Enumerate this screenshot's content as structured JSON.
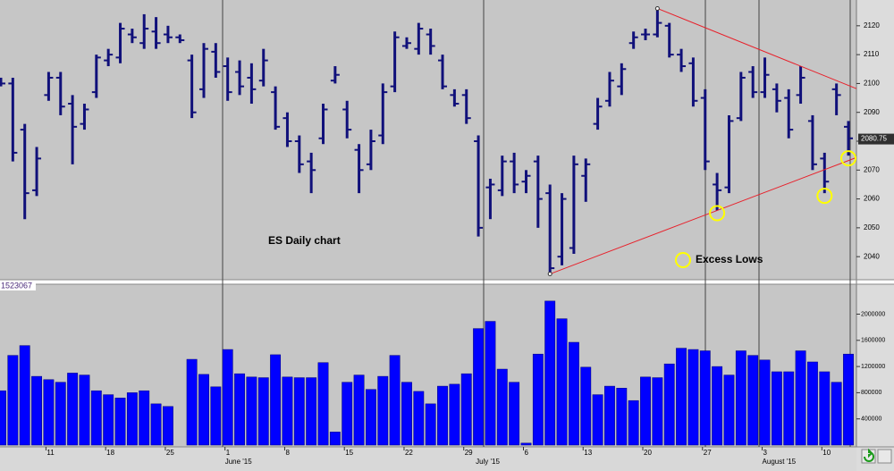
{
  "chart_data": [
    {
      "type": "ohlc",
      "title": "ES Daily chart",
      "annotation": "Excess Lows",
      "categories": [
        null,
        null,
        null,
        null,
        "11",
        null,
        null,
        null,
        null,
        "18",
        null,
        null,
        null,
        null,
        "25",
        null,
        null,
        null,
        null,
        "1",
        null,
        null,
        null,
        null,
        "8",
        null,
        null,
        null,
        null,
        "15",
        null,
        null,
        null,
        null,
        "22",
        null,
        null,
        null,
        null,
        "29",
        null,
        null,
        null,
        null,
        "6",
        null,
        null,
        null,
        null,
        "13",
        null,
        null,
        null,
        null,
        "20",
        null,
        null,
        null,
        null,
        "27",
        null,
        null,
        null,
        null,
        "3",
        null,
        null,
        null,
        null,
        "10",
        null,
        null
      ],
      "month_labels": [
        {
          "index": 19,
          "label": "June '15"
        },
        {
          "index": 40,
          "label": "July '15"
        },
        {
          "index": 64,
          "label": "August '15"
        }
      ],
      "open": [
        2101,
        2100,
        2084,
        2063,
        2096,
        2102,
        2093,
        2086,
        2097,
        2108,
        2109,
        2117,
        2114,
        2118,
        2117,
        2116,
        2108,
        2098,
        2111,
        2106,
        2104,
        2102,
        2101,
        2097,
        2088,
        2080,
        2073,
        2081,
        2101,
        2091,
        2077,
        2072,
        2082,
        2099,
        2113,
        2112,
        2117,
        2108,
        2096,
        2096,
        2080,
        2064,
        2063,
        2073,
        2066,
        2073,
        2062,
        2040,
        2043,
        2068,
        2086,
        2094,
        2099,
        2114,
        2117,
        2117,
        2120,
        2110,
        2107,
        2095,
        2065,
        2064,
        2088,
        2104,
        2097,
        2098,
        2095,
        2096,
        2087,
        2074,
        2098,
        2085
      ],
      "high": [
        2102,
        2102,
        2086,
        2078,
        2104,
        2104,
        2096,
        2093,
        2110,
        2112,
        2121,
        2119,
        2124,
        2123,
        2120,
        2117,
        2110,
        2114,
        2114,
        2109,
        2108,
        2107,
        2112,
        2099,
        2090,
        2082,
        2076,
        2093,
        2106,
        2094,
        2079,
        2084,
        2100,
        2118,
        2116,
        2121,
        2119,
        2110,
        2098,
        2098,
        2082,
        2067,
        2075,
        2076,
        2070,
        2075,
        2065,
        2062,
        2075,
        2074,
        2095,
        2104,
        2107,
        2118,
        2119,
        2126,
        2121,
        2112,
        2109,
        2098,
        2069,
        2089,
        2104,
        2106,
        2109,
        2100,
        2098,
        2106,
        2089,
        2076,
        2100,
        2087
      ],
      "low": [
        2099,
        2073,
        2053,
        2061,
        2094,
        2089,
        2072,
        2084,
        2095,
        2106,
        2107,
        2114,
        2112,
        2112,
        2114,
        2114,
        2088,
        2095,
        2102,
        2094,
        2096,
        2093,
        2099,
        2084,
        2078,
        2069,
        2062,
        2079,
        2100,
        2081,
        2062,
        2070,
        2079,
        2097,
        2112,
        2110,
        2110,
        2098,
        2092,
        2086,
        2047,
        2053,
        2061,
        2062,
        2062,
        2050,
        2034,
        2037,
        2041,
        2059,
        2084,
        2092,
        2096,
        2112,
        2115,
        2116,
        2109,
        2104,
        2092,
        2070,
        2056,
        2062,
        2087,
        2095,
        2095,
        2090,
        2081,
        2093,
        2070,
        2062,
        2089,
        2075
      ],
      "close": [
        2100,
        2076,
        2062,
        2074,
        2102,
        2092,
        2085,
        2091,
        2109,
        2110,
        2119,
        2116,
        2119,
        2114,
        2116,
        2115,
        2090,
        2112,
        2104,
        2097,
        2099,
        2098,
        2108,
        2085,
        2080,
        2072,
        2070,
        2091,
        2103,
        2084,
        2070,
        2080,
        2097,
        2116,
        2114,
        2119,
        2113,
        2099,
        2093,
        2088,
        2050,
        2065,
        2073,
        2065,
        2068,
        2060,
        2036,
        2060,
        2072,
        2072,
        2092,
        2101,
        2105,
        2116,
        2117,
        2121,
        2110,
        2106,
        2094,
        2073,
        2063,
        2087,
        2102,
        2097,
        2103,
        2094,
        2084,
        2102,
        2072,
        2066,
        2096,
        2081
      ],
      "color": "#10107a",
      "ylim": [
        2032,
        2128
      ],
      "yticks": [
        2040,
        2050,
        2060,
        2070,
        2080,
        2090,
        2100,
        2110,
        2120
      ],
      "last_price": 2080.75,
      "trendlines": [
        {
          "color": "#e8202a",
          "points": [
            [
              55,
              2126
            ],
            [
              67,
              2106
            ]
          ]
        },
        {
          "color": "#e8202a",
          "points": [
            [
              46,
              2034
            ],
            [
              60,
              2056
            ]
          ]
        }
      ],
      "excess_lows": [
        60,
        69,
        71
      ],
      "highlight_color": "#ffff00"
    },
    {
      "type": "bar",
      "values": [
        830000,
        1370000,
        1520000,
        1050000,
        1000000,
        960000,
        1100000,
        1070000,
        830000,
        770000,
        720000,
        800000,
        830000,
        630000,
        590000,
        null,
        1310000,
        1080000,
        890000,
        1460000,
        1090000,
        1040000,
        1030000,
        1380000,
        1040000,
        1030000,
        1030000,
        1260000,
        200000,
        960000,
        1070000,
        850000,
        1050000,
        1370000,
        960000,
        820000,
        630000,
        900000,
        930000,
        1090000,
        1780000,
        1890000,
        1160000,
        960000,
        30000,
        1390000,
        2200000,
        1930000,
        1570000,
        1190000,
        770000,
        900000,
        870000,
        680000,
        1040000,
        1030000,
        1240000,
        1480000,
        1460000,
        1440000,
        1200000,
        1070000,
        1440000,
        1370000,
        1300000,
        1120000,
        1120000,
        1440000,
        1270000,
        1120000,
        960000,
        1390000
      ],
      "color": "#0000ff",
      "ylim": [
        0,
        2430000
      ],
      "yticks": [
        400000,
        800000,
        1200000,
        1600000,
        2000000
      ],
      "readout": 1523067
    }
  ]
}
